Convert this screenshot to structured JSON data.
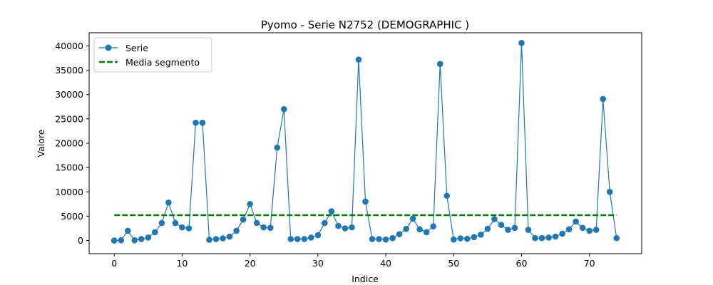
{
  "chart_data": {
    "type": "line",
    "title": "Pyomo - Serie N2752 (DEMOGRAPHIC )",
    "xlabel": "Indice",
    "ylabel": "Valore",
    "xlim": [
      -3.7,
      77.7
    ],
    "ylim": [
      -2700,
      42700
    ],
    "xticks": [
      0,
      10,
      20,
      30,
      40,
      50,
      60,
      70
    ],
    "yticks": [
      0,
      5000,
      10000,
      15000,
      20000,
      25000,
      30000,
      35000,
      40000
    ],
    "grid": false,
    "legend_position": "upper left",
    "series": [
      {
        "name": "Serie",
        "color": "#1f77b4",
        "style": "line-with-markers",
        "x": [
          0,
          1,
          2,
          3,
          4,
          5,
          6,
          7,
          8,
          9,
          10,
          11,
          12,
          13,
          14,
          15,
          16,
          17,
          18,
          19,
          20,
          21,
          22,
          23,
          24,
          25,
          26,
          27,
          28,
          29,
          30,
          31,
          32,
          33,
          34,
          35,
          36,
          37,
          38,
          39,
          40,
          41,
          42,
          43,
          44,
          45,
          46,
          47,
          48,
          49,
          50,
          51,
          52,
          53,
          54,
          55,
          56,
          57,
          58,
          59,
          60,
          61,
          62,
          63,
          64,
          65,
          66,
          67,
          68,
          69,
          70,
          71,
          72,
          73,
          74
        ],
        "values": [
          0,
          50,
          2000,
          50,
          300,
          600,
          1700,
          3600,
          7800,
          3600,
          2700,
          2500,
          24200,
          24200,
          150,
          300,
          450,
          800,
          2000,
          4300,
          7500,
          3600,
          2700,
          2600,
          19100,
          27000,
          300,
          300,
          300,
          600,
          1100,
          3600,
          6000,
          3000,
          2500,
          2700,
          37200,
          8000,
          300,
          300,
          200,
          500,
          1300,
          2400,
          4500,
          2300,
          1700,
          2900,
          36300,
          9200,
          200,
          450,
          350,
          700,
          1200,
          2400,
          4400,
          3200,
          2200,
          2600,
          40600,
          2200,
          500,
          500,
          600,
          800,
          1400,
          2300,
          3900,
          2600,
          2000,
          2200,
          29100,
          10000,
          500
        ]
      },
      {
        "name": "Media segmento",
        "color": "#008000",
        "style": "dashed",
        "x": [
          0,
          74
        ],
        "values": [
          5200,
          5200
        ]
      }
    ]
  }
}
